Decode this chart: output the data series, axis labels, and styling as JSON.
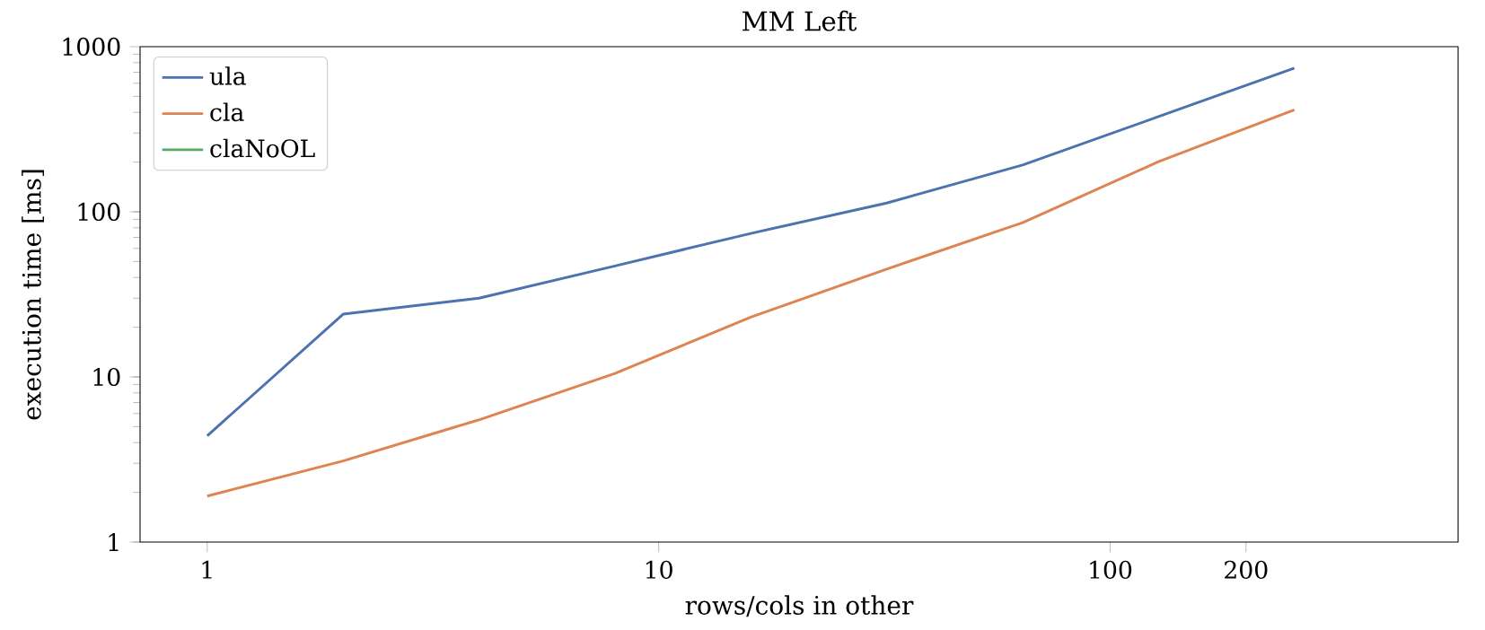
{
  "chart_data": {
    "type": "line",
    "title": "MM Left",
    "xlabel": "rows/cols in other",
    "ylabel": "execution time [ms]",
    "log": "xy",
    "x": [
      1,
      2,
      4,
      8,
      16,
      32,
      64,
      128,
      256
    ],
    "series": [
      {
        "name": "ula",
        "color": "#4c72b0",
        "values": [
          4.4,
          24,
          30,
          47,
          74,
          113,
          192,
          377,
          741
        ]
      },
      {
        "name": "cla",
        "color": "#dd8452",
        "values": [
          1.9,
          3.1,
          5.5,
          10.5,
          23,
          45,
          86,
          201,
          415
        ]
      },
      {
        "name": "claNoOL",
        "color": "#55a868",
        "values": [
          null,
          null,
          null,
          null,
          null,
          null,
          null,
          null,
          null
        ]
      }
    ],
    "xlim": [
      0.71,
      590
    ],
    "ylim": [
      1,
      1000
    ],
    "xticks": [
      1,
      10,
      100,
      200
    ],
    "yticks": [
      1,
      10,
      100,
      1000
    ],
    "legend": "top left",
    "grid": false,
    "marker": "none",
    "line_style": "solid"
  }
}
